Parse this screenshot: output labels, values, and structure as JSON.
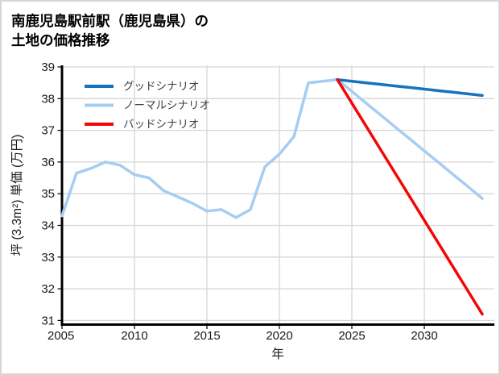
{
  "title": {
    "line1": "南鹿児島駅前駅（鹿児島県）の",
    "line2": "土地の価格推移"
  },
  "chart_data": {
    "type": "line",
    "title": "南鹿児島駅前駅（鹿児島県）の土地の価格推移",
    "xlabel": "年",
    "ylabel": "坪 (3.3m²) 単価 (万円)",
    "xlim": [
      2005,
      2035
    ],
    "ylim": [
      31,
      39
    ],
    "xticks": [
      2005,
      2010,
      2015,
      2020,
      2025,
      2030
    ],
    "yticks": [
      31,
      32,
      33,
      34,
      35,
      36,
      37,
      38,
      39
    ],
    "grid": true,
    "legend_position": "upper-left",
    "series": [
      {
        "name": "グッドシナリオ",
        "color": "#1573c2",
        "x": [
          2024,
          2025,
          2026,
          2027,
          2028,
          2029,
          2030,
          2031,
          2032,
          2033,
          2034
        ],
        "values": [
          38.6,
          38.55,
          38.5,
          38.45,
          38.4,
          38.35,
          38.3,
          38.25,
          38.2,
          38.15,
          38.1
        ]
      },
      {
        "name": "ノーマルシナリオ",
        "color": "#a6cdf1",
        "x": [
          2005,
          2006,
          2007,
          2008,
          2009,
          2010,
          2011,
          2012,
          2013,
          2014,
          2015,
          2016,
          2017,
          2018,
          2019,
          2020,
          2021,
          2022,
          2023,
          2024,
          2025,
          2026,
          2027,
          2028,
          2029,
          2030,
          2031,
          2032,
          2033,
          2034
        ],
        "values": [
          34.3,
          35.65,
          35.8,
          36.0,
          35.9,
          35.6,
          35.5,
          35.1,
          34.9,
          34.7,
          34.45,
          34.5,
          34.25,
          34.5,
          35.85,
          36.25,
          36.8,
          38.5,
          38.55,
          38.6,
          38.23,
          37.85,
          37.48,
          37.1,
          36.73,
          36.35,
          35.98,
          35.6,
          35.23,
          34.85
        ]
      },
      {
        "name": "バッドシナリオ",
        "color": "#f40606",
        "x": [
          2024,
          2025,
          2026,
          2027,
          2028,
          2029,
          2030,
          2031,
          2032,
          2033,
          2034
        ],
        "values": [
          38.6,
          37.86,
          37.12,
          36.38,
          35.64,
          34.9,
          34.16,
          33.42,
          32.68,
          31.94,
          31.2
        ]
      }
    ],
    "draw_order": [
      "ノーマルシナリオ",
      "グッドシナリオ",
      "バッドシナリオ"
    ]
  },
  "colors": {
    "background": "#ffffff",
    "frame_border": "#d6d6d6",
    "grid": "#d6d6d6",
    "axis": "#000000",
    "good": "#1573c2",
    "normal": "#a6cdf1",
    "bad": "#f40606"
  }
}
